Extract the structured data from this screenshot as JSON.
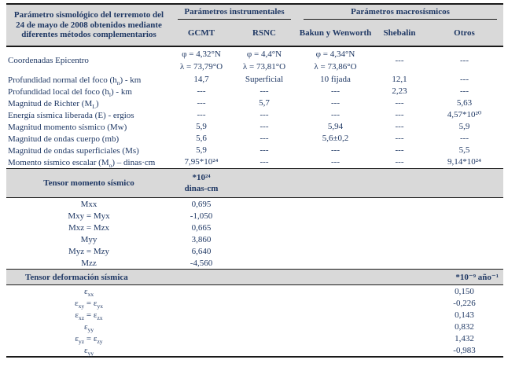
{
  "colors": {
    "header_bg": "#d9d9d9",
    "text": "#1f3864",
    "line": "#1a1a1a"
  },
  "header": {
    "left_title": "Parámetro sismológico del terremoto del 24 de mayo de 2008 obtenidos mediante diferentes métodos complementarios",
    "group_instrumental": "Parámetros instrumentales",
    "group_macroseismic": "Parámetros macrosísmicos",
    "columns": [
      "GCMT",
      "RSNC",
      "Bakun y Wenworth",
      "Shebalin",
      "Otros"
    ]
  },
  "coordinates": {
    "label": "Coordenadas Epicentro",
    "gcmt": {
      "phi": "φ = 4,32°N",
      "lambda": "λ = 73,79°O"
    },
    "rsnc": {
      "phi": "φ = 4,4°N",
      "lambda": "λ = 73,81°O"
    },
    "bakun": {
      "phi": "φ = 4,34°N",
      "lambda": "λ = 73,86°O"
    },
    "shebalin": "---",
    "otros": "---"
  },
  "rows": [
    {
      "pre": "Profundidad normal del foco (h",
      "sub": "n",
      "post": ") - km",
      "values": [
        "14,7",
        "Superficial",
        "10 fijada",
        "12,1",
        "---"
      ]
    },
    {
      "pre": "Profundidad local del foco (h",
      "sub": "l",
      "post": ") - km",
      "values": [
        "---",
        "---",
        "---",
        "2,23",
        "---"
      ]
    },
    {
      "pre": "Magnitud de Richter (M",
      "sub": "L",
      "post": ")",
      "values": [
        "---",
        "5,7",
        "---",
        "---",
        "5,63"
      ]
    },
    {
      "pre": "Energía sísmica liberada (E) - ergios",
      "sub": "",
      "post": "",
      "values": [
        "---",
        "---",
        "---",
        "---",
        "4,57*10²⁰"
      ]
    },
    {
      "pre": "Magnitud momento sísmico (Mw)",
      "sub": "",
      "post": "",
      "values": [
        "5,9",
        "---",
        "5,94",
        "---",
        "5,9"
      ]
    },
    {
      "pre": "Magnitud de ondas cuerpo (mb)",
      "sub": "",
      "post": "",
      "values": [
        "5,6",
        "---",
        "5,6±0,2",
        "---",
        "---"
      ]
    },
    {
      "pre": "Magnitud de ondas superficiales (Ms)",
      "sub": "",
      "post": "",
      "values": [
        "5,9",
        "---",
        "---",
        "---",
        "5,5"
      ]
    },
    {
      "pre": "Momento sísmico escalar (M",
      "sub": "o",
      "post": ") – dinas·cm",
      "values": [
        "7,95*10²⁴",
        "---",
        "---",
        "---",
        "9,14*10²⁴"
      ]
    }
  ],
  "moment_tensor": {
    "title": "Tensor momento sísmico",
    "unit_line1": "*10²⁴",
    "unit_line2": "dinas-cm",
    "rows": [
      {
        "label": "Mxx",
        "value": "0,695"
      },
      {
        "label": "Mxy = Myx",
        "value": "-1,050"
      },
      {
        "label": "Mxz = Mzx",
        "value": "0,665"
      },
      {
        "label": "Myy",
        "value": "3,860"
      },
      {
        "label": "Myz = Mzy",
        "value": "6,640"
      },
      {
        "label": "Mzz",
        "value": "-4,560"
      }
    ]
  },
  "strain_tensor": {
    "title": "Tensor deformación sísmica",
    "unit": "*10⁻⁹ año⁻¹",
    "rows": [
      {
        "pre": "ε",
        "sub1": "xx",
        "mid": "",
        "sub2": "",
        "value": "0,150"
      },
      {
        "pre": "ε",
        "sub1": "xy",
        "mid": " = ε",
        "sub2": "yx",
        "value": "-0,226"
      },
      {
        "pre": "ε",
        "sub1": "xz",
        "mid": " = ε",
        "sub2": "zx",
        "value": "0,143"
      },
      {
        "pre": "ε",
        "sub1": "yy",
        "mid": "",
        "sub2": "",
        "value": "0,832"
      },
      {
        "pre": "ε",
        "sub1": "yz",
        "mid": " = ε",
        "sub2": "zy",
        "value": "1,432"
      },
      {
        "pre": "ε",
        "sub1": "yy",
        "mid": "",
        "sub2": "",
        "value": "-0,983"
      }
    ]
  }
}
